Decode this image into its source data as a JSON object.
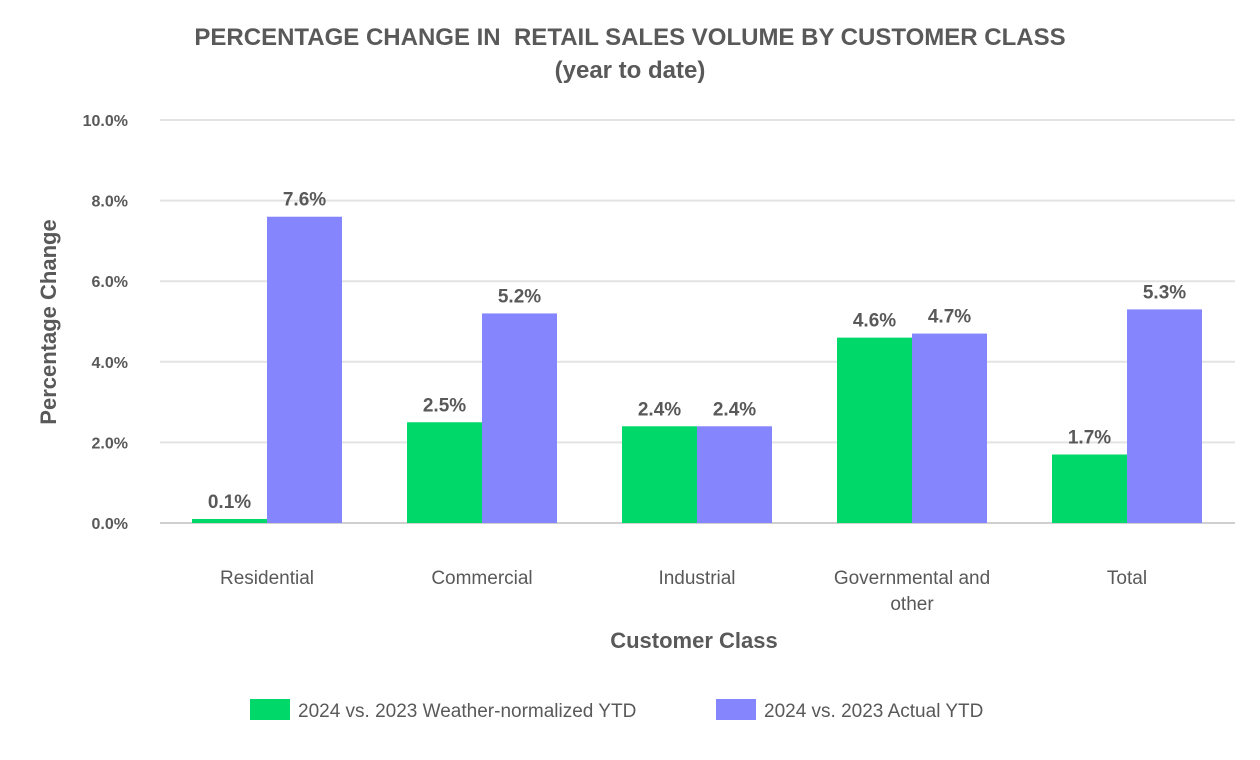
{
  "chart_data": {
    "type": "bar",
    "title": "PERCENTAGE CHANGE IN  RETAIL SALES VOLUME BY CUSTOMER CLASS",
    "subtitle": "(year to date)",
    "xlabel": "Customer Class",
    "ylabel": "Percentage Change",
    "ylim": [
      0,
      10
    ],
    "yticks": [
      "0.0%",
      "2.0%",
      "4.0%",
      "6.0%",
      "8.0%",
      "10.0%"
    ],
    "ytick_values": [
      0,
      2,
      4,
      6,
      8,
      10
    ],
    "categories": [
      [
        "Residential"
      ],
      [
        "Commercial"
      ],
      [
        "Industrial"
      ],
      [
        "Governmental and",
        "other"
      ],
      [
        "Total"
      ]
    ],
    "series": [
      {
        "name": "2024 vs. 2023 Weather-normalized YTD",
        "color": "#00d96a",
        "values": [
          0.1,
          2.5,
          2.4,
          4.6,
          1.7
        ],
        "labels": [
          "0.1%",
          "2.5%",
          "2.4%",
          "4.6%",
          "1.7%"
        ]
      },
      {
        "name": "2024 vs. 2023 Actual YTD",
        "color": "#8585fe",
        "values": [
          7.6,
          5.2,
          2.4,
          4.7,
          5.3
        ],
        "labels": [
          "7.6%",
          "5.2%",
          "2.4%",
          "4.7%",
          "5.3%"
        ]
      }
    ],
    "grid": true,
    "legend_position": "bottom-center"
  }
}
